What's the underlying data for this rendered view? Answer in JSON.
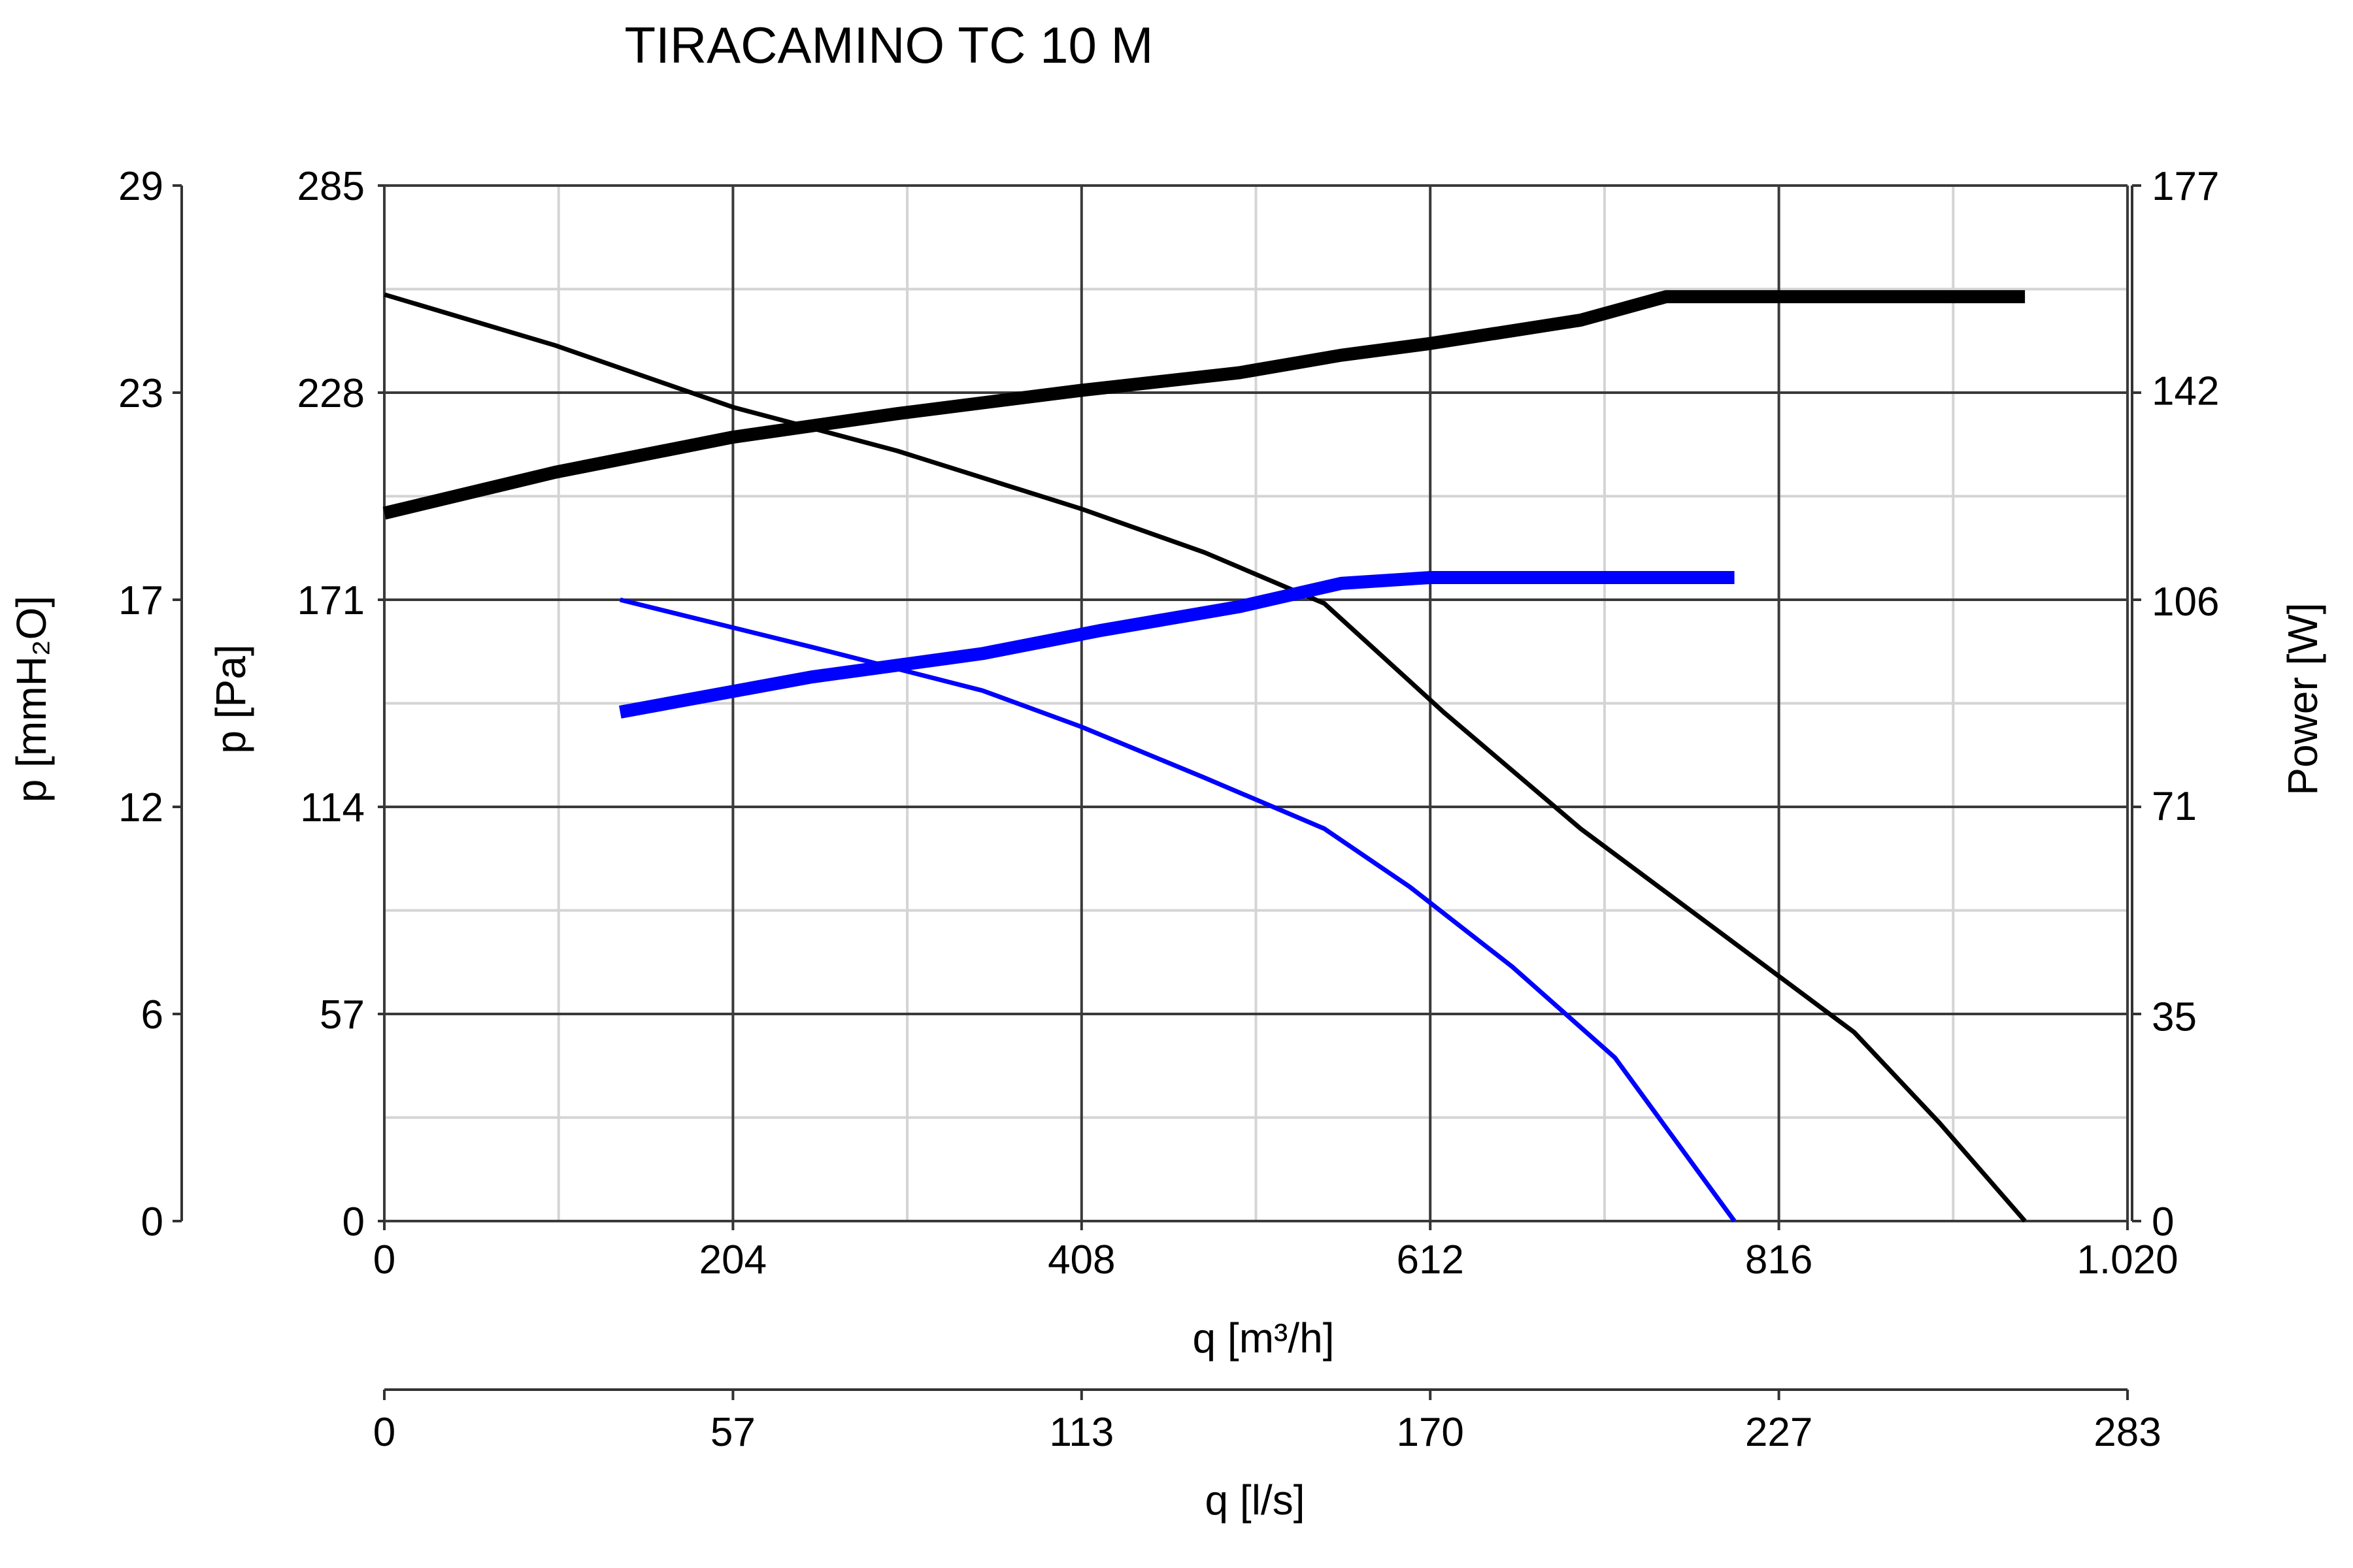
{
  "chart_data": {
    "type": "line",
    "title": "TIRACAMINO TC 10 M",
    "x_primary": {
      "label": "q [m³/h]",
      "range": [
        0,
        1020
      ],
      "ticks": [
        0,
        204,
        408,
        612,
        816,
        1020
      ],
      "tick_labels": [
        "0",
        "204",
        "408",
        "612",
        "816",
        "1.020"
      ]
    },
    "x_secondary": {
      "label": "q [l/s]",
      "range": [
        0,
        283
      ],
      "ticks": [
        0,
        57,
        113,
        170,
        227,
        283
      ],
      "tick_labels": [
        "0",
        "57",
        "113",
        "170",
        "227",
        "283"
      ]
    },
    "y_pa": {
      "label": "p [Pa]",
      "range": [
        0,
        285
      ],
      "ticks": [
        0,
        57,
        114,
        171,
        228,
        285
      ],
      "tick_labels": [
        "0",
        "57",
        "114",
        "171",
        "228",
        "285"
      ]
    },
    "y_mmh2o": {
      "label": "p [mmH₂O]",
      "range": [
        0,
        29
      ],
      "tick_labels": [
        "0",
        "6",
        "12",
        "17",
        "23",
        "29"
      ]
    },
    "y_power": {
      "label": "Power [W]",
      "range": [
        0,
        177
      ],
      "ticks": [
        0,
        35,
        71,
        106,
        142,
        177
      ],
      "tick_labels": [
        "0",
        "35",
        "71",
        "106",
        "142",
        "177"
      ]
    },
    "grid": true,
    "series": [
      {
        "axis": "pressure",
        "color": "#000000",
        "weight": "thin",
        "points": [
          [
            0,
            255
          ],
          [
            100,
            241
          ],
          [
            204,
            224
          ],
          [
            300,
            212
          ],
          [
            408,
            196
          ],
          [
            480,
            184
          ],
          [
            550,
            170
          ],
          [
            620,
            140
          ],
          [
            700,
            108
          ],
          [
            780,
            80
          ],
          [
            860,
            52
          ],
          [
            910,
            27
          ],
          [
            960,
            0
          ]
        ]
      },
      {
        "axis": "power",
        "color": "#000000",
        "weight": "thick",
        "points": [
          [
            0,
            121
          ],
          [
            100,
            128
          ],
          [
            204,
            134
          ],
          [
            300,
            138
          ],
          [
            408,
            142
          ],
          [
            500,
            145
          ],
          [
            560,
            148
          ],
          [
            612,
            150
          ],
          [
            700,
            154
          ],
          [
            750,
            158
          ],
          [
            900,
            158
          ],
          [
            960,
            158
          ]
        ]
      },
      {
        "axis": "pressure",
        "color": "#0000ff",
        "weight": "thin",
        "points": [
          [
            138,
            171
          ],
          [
            250,
            158
          ],
          [
            350,
            146
          ],
          [
            408,
            136
          ],
          [
            480,
            122
          ],
          [
            550,
            108
          ],
          [
            600,
            92
          ],
          [
            660,
            70
          ],
          [
            720,
            45
          ],
          [
            790,
            0
          ]
        ]
      },
      {
        "axis": "power",
        "color": "#0000ff",
        "weight": "thick",
        "points": [
          [
            138,
            87
          ],
          [
            250,
            93
          ],
          [
            350,
            97
          ],
          [
            420,
            101
          ],
          [
            500,
            105
          ],
          [
            560,
            109
          ],
          [
            612,
            110
          ],
          [
            700,
            110
          ],
          [
            790,
            110
          ]
        ]
      }
    ]
  }
}
